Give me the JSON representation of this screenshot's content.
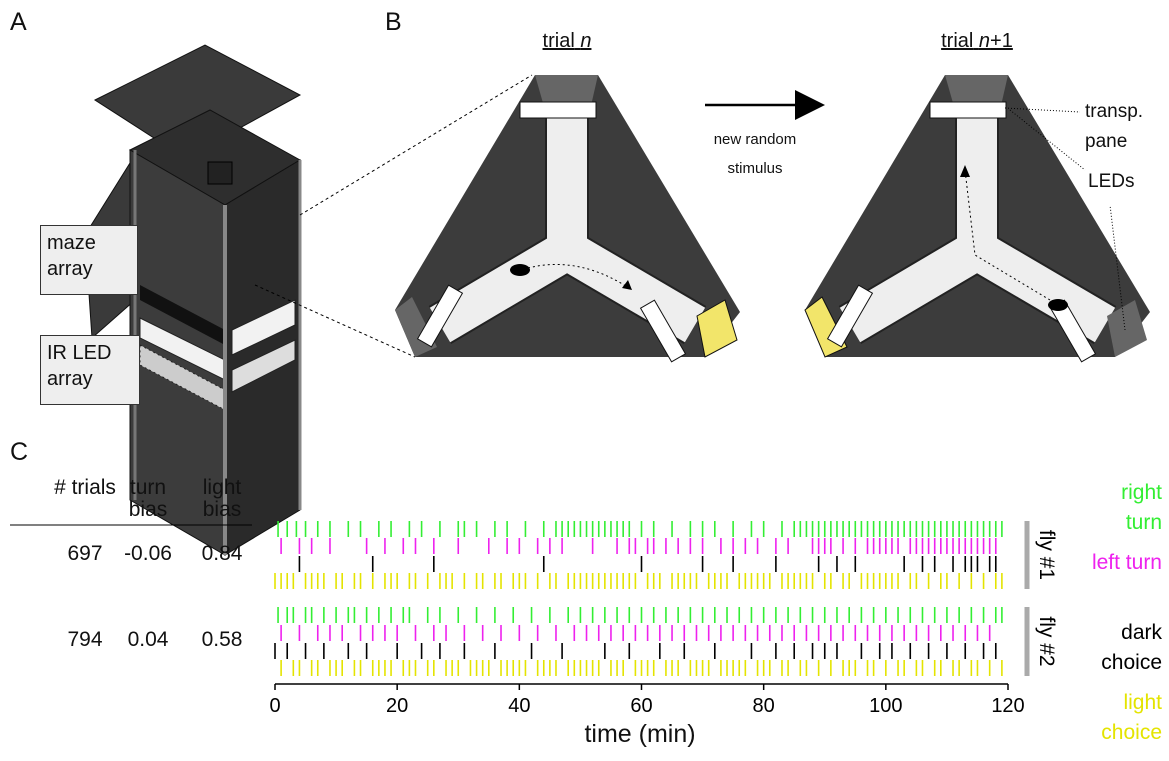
{
  "panel_labels": [
    "A",
    "B",
    "C"
  ],
  "panel_a": {
    "labels": [
      "maze array",
      "IR LED array"
    ]
  },
  "panel_b": {
    "trials": [
      {
        "word": "trial",
        "var": "n"
      },
      {
        "word": "trial",
        "var": "n",
        "suffix": "+1"
      }
    ],
    "arrow_label": "new random stimulus",
    "annotations": [
      "transp. pane",
      "LEDs"
    ]
  },
  "table": {
    "headers": [
      "# trials",
      "turn bias",
      "light bias"
    ],
    "rows": [
      [
        "697",
        "-0.06",
        "0.84"
      ],
      [
        "794",
        "0.04",
        "0.58"
      ]
    ]
  },
  "chart_data": {
    "type": "raster",
    "xlabel": "time (min)",
    "xlim": [
      0,
      120
    ],
    "xticks": [
      0,
      20,
      40,
      60,
      80,
      100,
      120
    ],
    "legend": [
      {
        "name": "right turn",
        "color": "#33ee33"
      },
      {
        "name": "left turn",
        "color": "#ee22ee"
      },
      {
        "name": "dark choice",
        "color": "#000000"
      },
      {
        "name": "light choice",
        "color": "#e4e400"
      }
    ],
    "flies": [
      {
        "name": "fly #1",
        "events": [
          [
            0.5,
            2,
            3.5,
            5,
            7,
            9,
            12,
            14,
            17,
            19,
            22,
            24,
            27,
            30,
            31,
            33,
            36,
            38,
            41,
            44,
            46,
            47,
            48,
            49,
            50,
            51,
            52,
            53,
            54,
            55,
            56,
            57,
            58,
            60,
            62,
            65,
            68,
            70,
            72,
            75,
            78,
            80,
            83,
            85,
            86,
            87,
            88,
            89,
            90,
            91,
            92,
            93,
            94,
            95,
            96,
            97,
            98,
            99,
            100,
            101,
            102,
            103,
            104,
            105,
            106,
            107,
            108,
            109,
            110,
            111,
            112,
            113,
            114,
            115,
            116,
            117,
            118,
            119
          ],
          [
            1,
            4,
            6,
            9,
            15,
            18,
            21,
            23,
            26,
            30,
            35,
            38,
            40,
            43,
            45,
            47,
            52,
            56,
            58,
            59,
            61,
            62,
            64,
            66,
            68,
            70,
            73,
            75,
            77,
            79,
            82,
            84,
            88,
            89,
            90,
            91,
            93,
            95,
            97,
            98,
            99,
            100,
            101,
            102,
            104,
            105,
            106,
            107,
            108,
            109,
            110,
            111,
            112,
            113,
            114,
            115,
            116,
            117,
            118
          ],
          [
            4,
            16,
            26,
            44,
            60,
            70,
            75,
            82,
            89,
            92,
            95,
            103,
            106,
            108,
            111,
            113,
            114,
            115,
            117,
            118
          ],
          [
            0,
            1,
            2,
            3,
            5,
            6,
            7,
            8,
            10,
            11,
            13,
            14,
            16,
            18,
            19,
            20,
            22,
            23,
            25,
            27,
            28,
            29,
            31,
            33,
            34,
            36,
            37,
            39,
            40,
            41,
            43,
            45,
            46,
            48,
            49,
            50,
            51,
            52,
            53,
            54,
            55,
            56,
            57,
            58,
            59,
            61,
            62,
            63,
            65,
            66,
            67,
            68,
            69,
            71,
            72,
            73,
            74,
            76,
            77,
            78,
            79,
            80,
            81,
            83,
            84,
            85,
            86,
            87,
            88,
            90,
            91,
            93,
            94,
            96,
            97,
            98,
            99,
            100,
            101,
            102,
            104,
            105,
            107,
            109,
            110,
            112,
            114,
            116,
            118,
            119
          ]
        ]
      },
      {
        "name": "fly #2",
        "events": [
          [
            0.5,
            2,
            3,
            5,
            6,
            8,
            10,
            12,
            13,
            15,
            17,
            19,
            21,
            22,
            25,
            27,
            30,
            33,
            36,
            39,
            42,
            45,
            48,
            50,
            52,
            54,
            56,
            58,
            60,
            62,
            64,
            66,
            68,
            70,
            72,
            74,
            76,
            78,
            80,
            82,
            84,
            86,
            88,
            90,
            92,
            94,
            96,
            98,
            100,
            102,
            104,
            106,
            108,
            110,
            112,
            114,
            116,
            118,
            119
          ],
          [
            1,
            4,
            7,
            9,
            11,
            14,
            16,
            18,
            20,
            23,
            26,
            28,
            31,
            34,
            37,
            40,
            43,
            46,
            49,
            51,
            53,
            55,
            57,
            59,
            61,
            63,
            65,
            67,
            69,
            71,
            73,
            75,
            77,
            79,
            81,
            83,
            85,
            87,
            89,
            91,
            93,
            95,
            97,
            99,
            101,
            103,
            105,
            107,
            109,
            111,
            113,
            115,
            117
          ],
          [
            0,
            2,
            5,
            8,
            12,
            15,
            20,
            24,
            27,
            31,
            36,
            42,
            47,
            54,
            58,
            63,
            67,
            72,
            78,
            82,
            85,
            88,
            90,
            92,
            96,
            99,
            101,
            104,
            107,
            110,
            113,
            116,
            118
          ],
          [
            1,
            3,
            4,
            6,
            7,
            9,
            10,
            11,
            13,
            14,
            16,
            17,
            18,
            19,
            21,
            22,
            23,
            25,
            26,
            28,
            29,
            30,
            32,
            33,
            34,
            35,
            37,
            38,
            39,
            40,
            41,
            43,
            44,
            45,
            46,
            48,
            49,
            50,
            51,
            52,
            53,
            55,
            56,
            57,
            59,
            60,
            61,
            62,
            64,
            65,
            66,
            68,
            69,
            70,
            71,
            73,
            74,
            75,
            76,
            77,
            79,
            80,
            81,
            83,
            84,
            86,
            87,
            89,
            91,
            93,
            94,
            95,
            97,
            98,
            100,
            102,
            103,
            105,
            106,
            108,
            109,
            111,
            112,
            114,
            115,
            117,
            119
          ]
        ]
      }
    ]
  }
}
